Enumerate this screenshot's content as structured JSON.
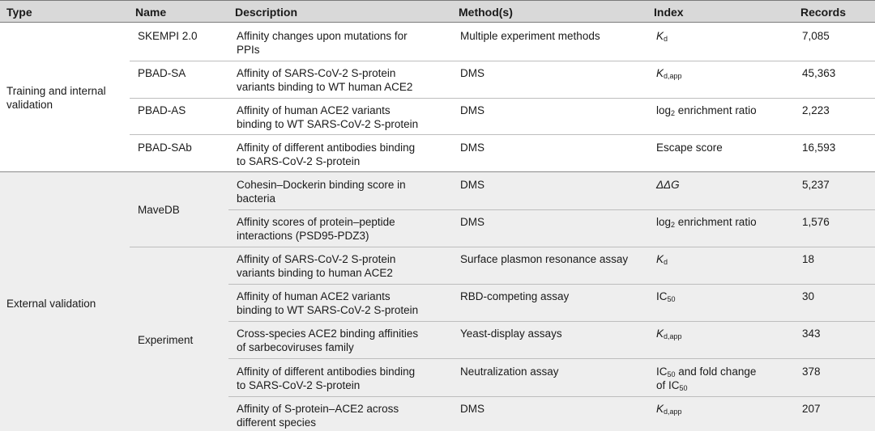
{
  "columns": {
    "type": "Type",
    "name": "Name",
    "description": "Description",
    "methods": "Method(s)",
    "index": "Index",
    "records": "Records"
  },
  "groups": {
    "training": {
      "type_line1": "Training and internal",
      "type_line2": "validation",
      "rows": [
        {
          "name": "SKEMPI 2.0",
          "desc1": "Affinity changes upon mutations for",
          "desc2": "PPIs",
          "method": "Multiple experiment methods",
          "index_main": "K",
          "index_sub": "d",
          "records": "7,085"
        },
        {
          "name": "PBAD-SA",
          "desc1": "Affinity of SARS-CoV-2 S-protein",
          "desc2": "variants binding to WT human ACE2",
          "method": "DMS",
          "index_main": "K",
          "index_sub": "d,app",
          "records": "45,363"
        },
        {
          "name": "PBAD-AS",
          "desc1": "Affinity of human ACE2 variants",
          "desc2": "binding to WT SARS-CoV-2 S-protein",
          "method": "DMS",
          "index_main": "log",
          "index_sub": "2",
          "index_rest": " enrichment ratio",
          "records": "2,223"
        },
        {
          "name": "PBAD-SAb",
          "desc1": "Affinity of different antibodies binding",
          "desc2": "to SARS-CoV-2 S-protein",
          "method": "DMS",
          "index_main": "Escape score",
          "records": "16,593"
        }
      ]
    },
    "external": {
      "type_label": "External validation",
      "subgroups": [
        {
          "name": "MaveDB"
        },
        {
          "name": "Experiment"
        }
      ],
      "rows": [
        {
          "desc1": "Cohesin–Dockerin binding score in",
          "desc2": "bacteria",
          "method": "DMS",
          "index_main": "ΔΔG",
          "records": "5,237"
        },
        {
          "desc1": "Affinity scores of protein–peptide",
          "desc2": "interactions (PSD95-PDZ3)",
          "method": "DMS",
          "index_main": "log",
          "index_sub": "2",
          "index_rest": " enrichment ratio",
          "records": "1,576"
        },
        {
          "desc1": "Affinity of SARS-CoV-2 S-protein",
          "desc2": "variants binding to human ACE2",
          "method": "Surface plasmon resonance assay",
          "index_main": "K",
          "index_sub": "d",
          "records": "18"
        },
        {
          "desc1": "Affinity of human ACE2 variants",
          "desc2": "binding to WT SARS-CoV-2 S-protein",
          "method": "RBD-competing assay",
          "index_main": "IC",
          "index_sub": "50",
          "records": "30"
        },
        {
          "desc1": "Cross-species ACE2 binding affinities",
          "desc2": "of sarbecoviruses family",
          "method": "Yeast-display assays",
          "index_main": "K",
          "index_sub": "d,app",
          "records": "343"
        },
        {
          "desc1": "Affinity of different antibodies binding",
          "desc2": "to SARS-CoV-2 S-protein",
          "method": "Neutralization assay",
          "index_main": "IC",
          "index_sub": "50",
          "index_rest": " and fold change",
          "index_line2": "of IC",
          "index_line2_sub": "50",
          "records": "378"
        },
        {
          "desc1": "Affinity of S-protein–ACE2 across",
          "desc2": "different species",
          "method": "DMS",
          "index_main": "K",
          "index_sub": "d,app",
          "records": "207"
        }
      ]
    }
  }
}
